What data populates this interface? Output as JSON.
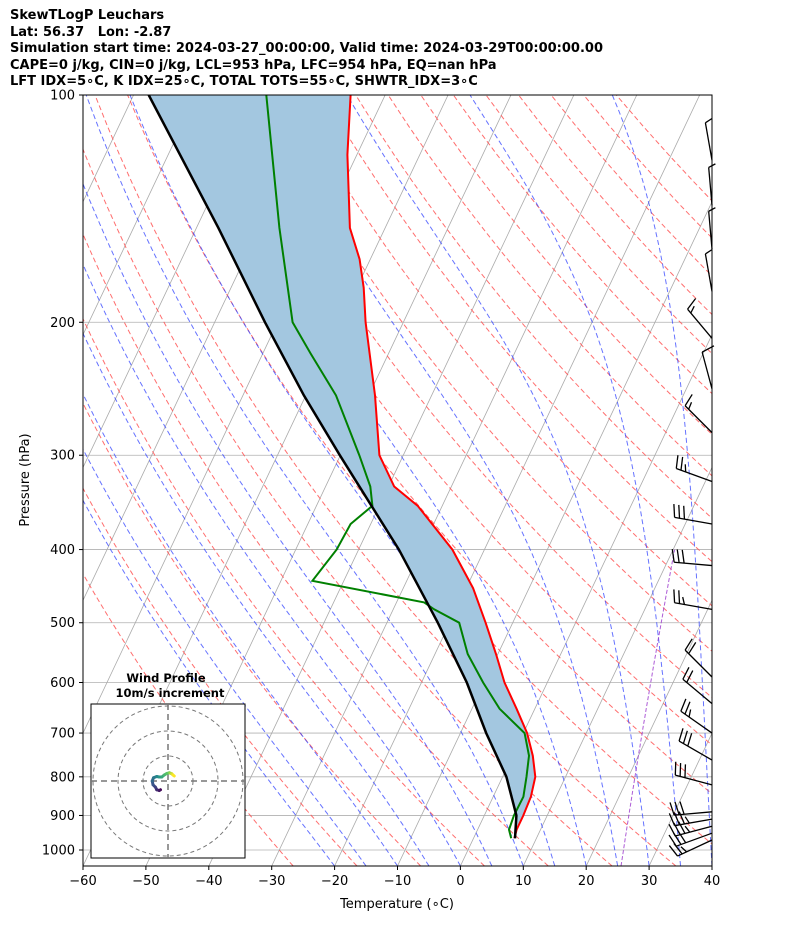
{
  "header": {
    "line1": "SkewTLogP Leuchars",
    "line2": "Lat: 56.37   Lon: -2.87",
    "line3": "Simulation start time: 2024-03-27_00:00:00, Valid time: 2024-03-29T00:00:00.00",
    "line4": "CAPE=0 j/kg, CIN=0 j/kg, LCL=953 hPa, LFC=954 hPa, EQ=nan hPa",
    "line5": "LFT IDX=5∘C, K IDX=25∘C, TOTAL TOTS=55∘C, SHWTR_IDX=3∘C"
  },
  "inset": {
    "title_line1": "Wind Profile",
    "title_line2": "10m/s increment"
  },
  "colors": {
    "temperature": "#ff0000",
    "dewpoint": "#008000",
    "parcel": "#000000",
    "shading": "#a3c7e0",
    "dry_adiabat": "#ff5555",
    "moist_adiabat": "#3344ff",
    "mixing_ratio": "#9933cc",
    "isotherm": "#aaaaaa"
  },
  "chart_data": {
    "type": "line",
    "title": "SkewTLogP Leuchars",
    "xlabel": "Temperature (∘C)",
    "ylabel": "Pressure (hPa)",
    "xlim": [
      -60,
      40
    ],
    "ylim": [
      1050,
      100
    ],
    "x_ticks": [
      -60,
      -50,
      -40,
      -30,
      -20,
      -10,
      0,
      10,
      20,
      30,
      40
    ],
    "y_ticks": [
      1000,
      900,
      800,
      700,
      600,
      500,
      400,
      300,
      200,
      100
    ],
    "grid": true,
    "series": [
      {
        "name": "Temperature",
        "pressure": [
          965,
          940,
          900,
          850,
          800,
          750,
          700,
          650,
          600,
          550,
          500,
          450,
          400,
          350,
          330,
          300,
          250,
          200,
          180,
          165,
          150,
          120,
          100
        ],
        "temperature": [
          6.5,
          6.2,
          6.2,
          6.0,
          5.2,
          3.2,
          0.6,
          -2.9,
          -6.8,
          -10.3,
          -14.3,
          -18.9,
          -25.1,
          -33.9,
          -39.1,
          -43.8,
          -49.0,
          -56.0,
          -58.9,
          -61.7,
          -65.6,
          -71.5,
          -75.5
        ]
      },
      {
        "name": "Dewpoint",
        "pressure": [
          965,
          940,
          900,
          850,
          800,
          750,
          700,
          650,
          600,
          550,
          500,
          480,
          470,
          440,
          400,
          370,
          350,
          330,
          300,
          280,
          250,
          220,
          200,
          150,
          100
        ],
        "temperature": [
          6.0,
          5.0,
          4.7,
          4.8,
          3.8,
          2.6,
          0.2,
          -5.6,
          -10.2,
          -14.8,
          -18.5,
          -23.5,
          -25.6,
          -45.0,
          -43.5,
          -43.2,
          -41.1,
          -42.9,
          -47.0,
          -50.1,
          -55.2,
          -62.4,
          -67.6,
          -76.8,
          -88.9
        ]
      },
      {
        "name": "Parcel",
        "pressure": [
          965,
          900,
          800,
          700,
          600,
          500,
          400,
          300,
          250,
          200,
          150,
          100
        ],
        "temperature": [
          6.6,
          5.1,
          0.6,
          -5.9,
          -12.8,
          -21.9,
          -33.6,
          -50.1,
          -60.3,
          -72.0,
          -86.5,
          -107.6
        ]
      }
    ],
    "wind_barbs": [
      {
        "pressure": 970,
        "speed_kt": 25,
        "direction_deg": 245
      },
      {
        "pressure": 950,
        "speed_kt": 30,
        "direction_deg": 250
      },
      {
        "pressure": 930,
        "speed_kt": 35,
        "direction_deg": 255
      },
      {
        "pressure": 910,
        "speed_kt": 35,
        "direction_deg": 260
      },
      {
        "pressure": 890,
        "speed_kt": 30,
        "direction_deg": 265
      },
      {
        "pressure": 820,
        "speed_kt": 30,
        "direction_deg": 285
      },
      {
        "pressure": 760,
        "speed_kt": 30,
        "direction_deg": 300
      },
      {
        "pressure": 700,
        "speed_kt": 25,
        "direction_deg": 305
      },
      {
        "pressure": 640,
        "speed_kt": 20,
        "direction_deg": 310
      },
      {
        "pressure": 590,
        "speed_kt": 20,
        "direction_deg": 315
      },
      {
        "pressure": 480,
        "speed_kt": 25,
        "direction_deg": 280
      },
      {
        "pressure": 420,
        "speed_kt": 30,
        "direction_deg": 275
      },
      {
        "pressure": 370,
        "speed_kt": 30,
        "direction_deg": 280
      },
      {
        "pressure": 325,
        "speed_kt": 25,
        "direction_deg": 290
      },
      {
        "pressure": 280,
        "speed_kt": 15,
        "direction_deg": 315
      },
      {
        "pressure": 245,
        "speed_kt": 10,
        "direction_deg": 345
      },
      {
        "pressure": 210,
        "speed_kt": 15,
        "direction_deg": 320
      },
      {
        "pressure": 182,
        "speed_kt": 5,
        "direction_deg": 350
      },
      {
        "pressure": 160,
        "speed_kt": 5,
        "direction_deg": 355
      },
      {
        "pressure": 140,
        "speed_kt": 5,
        "direction_deg": 355
      },
      {
        "pressure": 122,
        "speed_kt": 5,
        "direction_deg": 350
      }
    ],
    "hodograph": {
      "ring_increment_ms": 10,
      "u": [
        -3.0,
        -3.5,
        -4.5,
        -5.0,
        -6.0,
        -6.3,
        -5.8,
        -4.5,
        -3.5,
        -2.5,
        -1.5,
        -0.5,
        0.5,
        1.0,
        1.5,
        2.0,
        2.5
      ],
      "v": [
        -3.5,
        -3.8,
        -3.5,
        -2.5,
        -1.5,
        0.0,
        1.3,
        1.8,
        1.6,
        1.6,
        2.4,
        3.0,
        3.3,
        3.1,
        2.9,
        2.4,
        2.0
      ]
    }
  }
}
